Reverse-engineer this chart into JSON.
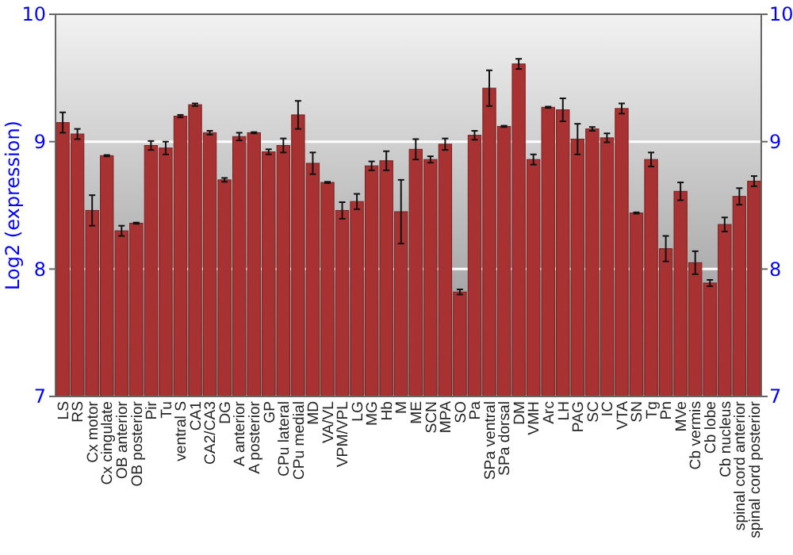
{
  "chart_data": {
    "type": "bar",
    "ylabel": "Log2 (expression)",
    "categories": [
      "LS",
      "RS",
      "Cx motor",
      "Cx cingulate",
      "OB anterior",
      "OB posterior",
      "Pir",
      "Tu",
      "ventral S",
      "CA1",
      "CA2/CA3",
      "DG",
      "A anterior",
      "A posterior",
      "GP",
      "CPu lateral",
      "CPu medial",
      "MD",
      "VA/VL",
      "VPM/VPL",
      "LG",
      "MG",
      "Hb",
      "M",
      "ME",
      "SCN",
      "MPA",
      "SO",
      "Pa",
      "SPa ventral",
      "SPa dorsal",
      "DM",
      "VMH",
      "Arc",
      "LH",
      "PAG",
      "SC",
      "IC",
      "VTA",
      "SN",
      "Tg",
      "Pn",
      "MVe",
      "Cb vermis",
      "Cb lobe",
      "Cb nucleus",
      "spinal cord anterior",
      "spinal cord posterior"
    ],
    "values": [
      9.15,
      9.06,
      8.46,
      8.89,
      8.3,
      8.36,
      8.97,
      8.95,
      9.2,
      9.29,
      9.07,
      8.7,
      9.04,
      9.07,
      8.92,
      8.97,
      9.21,
      8.83,
      8.68,
      8.46,
      8.53,
      8.81,
      8.85,
      8.45,
      8.94,
      8.86,
      8.98,
      7.82,
      9.05,
      9.42,
      9.12,
      9.61,
      8.86,
      9.27,
      9.25,
      9.02,
      9.1,
      9.03,
      9.26,
      8.44,
      8.86,
      8.16,
      8.61,
      8.05,
      7.89,
      8.35,
      8.57,
      8.69
    ],
    "errors": [
      0.08,
      0.04,
      0.12,
      0.005,
      0.04,
      0.005,
      0.035,
      0.05,
      0.01,
      0.01,
      0.015,
      0.015,
      0.03,
      0.005,
      0.02,
      0.055,
      0.11,
      0.085,
      0.005,
      0.065,
      0.06,
      0.035,
      0.075,
      0.25,
      0.08,
      0.025,
      0.045,
      0.02,
      0.035,
      0.14,
      0.005,
      0.04,
      0.04,
      0.005,
      0.09,
      0.12,
      0.015,
      0.035,
      0.04,
      0.005,
      0.055,
      0.1,
      0.07,
      0.09,
      0.025,
      0.055,
      0.065,
      0.04
    ],
    "color": "#a83232",
    "ylim": [
      7,
      10
    ],
    "yticks": [
      7,
      8,
      9,
      10
    ],
    "y2lim": [
      7,
      10
    ],
    "y2ticks": [
      7,
      8,
      9,
      10
    ],
    "grid": "y"
  }
}
